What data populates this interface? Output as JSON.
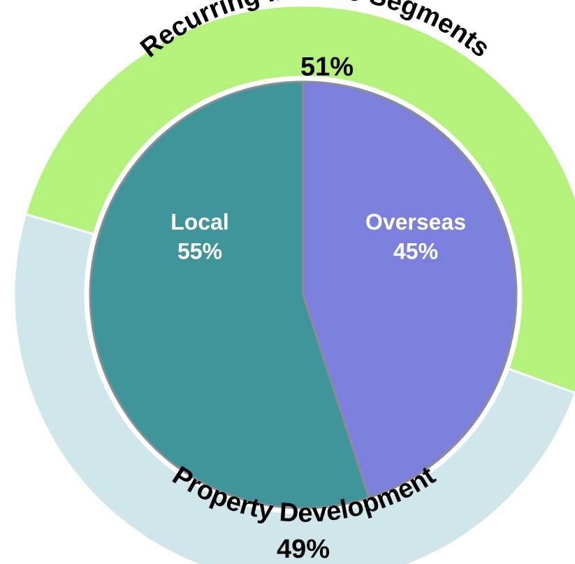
{
  "chart_data": {
    "type": "nested_pie",
    "outer": {
      "categories": [
        "Recurring Income Segments",
        "Property Development"
      ],
      "values": [
        51,
        49
      ],
      "value_labels": [
        "51%",
        "49%"
      ],
      "colors": [
        "#b5f27c",
        "#cfe6ea"
      ]
    },
    "inner": {
      "categories": [
        "Local",
        "Overseas"
      ],
      "values": [
        55,
        45
      ],
      "value_labels": [
        "55%",
        "45%"
      ],
      "colors": [
        "#40959a",
        "#7c7fdc"
      ]
    }
  }
}
